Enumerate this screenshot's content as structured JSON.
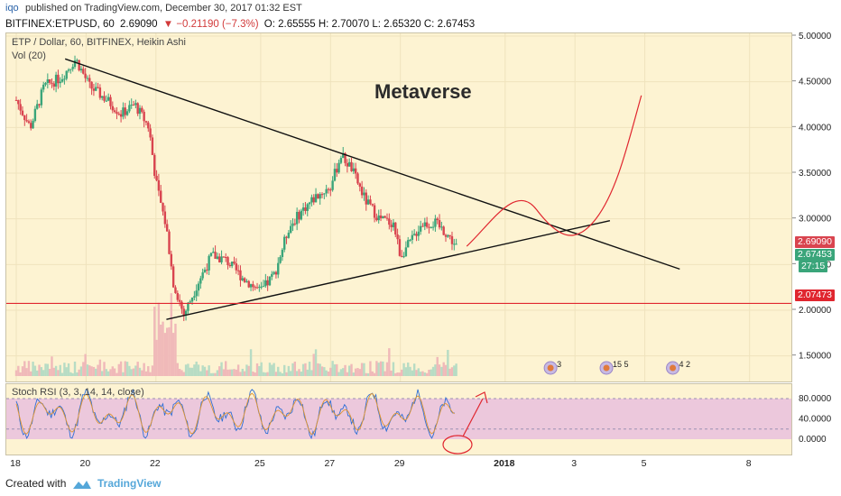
{
  "header": {
    "user": "iqo",
    "published": "published on TradingView.com, December 30, 2017 01:32 EST",
    "symbol": "BITFINEX:ETPUSD, 60",
    "last": "2.69090",
    "change": "▼ −0.21190 (−7.3%)",
    "ohlc": "O: 2.65555  H: 2.70070  L: 2.65320  C: 2.67453"
  },
  "legend": {
    "title": "ETP / Dollar, 60, BITFINEX, Heikin Ashi",
    "vol": "Vol (20)",
    "rsi": "Stoch RSI (3, 3, 14, 14, close)"
  },
  "annotation": "Metaverse",
  "price_tags": {
    "last": "2.69090",
    "close": "2.67453",
    "countdown": "27:15",
    "level": "2.07473"
  },
  "events": [
    {
      "count": "3"
    },
    {
      "count": "15 5"
    },
    {
      "count": "4 2"
    }
  ],
  "footer": {
    "created": "Created with",
    "brand": "TradingView"
  },
  "colors": {
    "up": "#3aa57a",
    "down": "#d9444f",
    "line_black": "#111111",
    "line_red": "#e0262f",
    "background": "#fdf3d2",
    "rsi_band": "#ecc8dc"
  },
  "chart_data": [
    {
      "type": "candlestick",
      "title": "ETP / Dollar, 60, BITFINEX, Heikin Ashi",
      "x_tick_labels": [
        "18",
        "20",
        "22",
        "25",
        "27",
        "29",
        "2018",
        "3",
        "5",
        "8"
      ],
      "y_tick_labels": [
        "5.00000",
        "4.50000",
        "4.00000",
        "3.50000",
        "3.00000",
        "2.50000",
        "2.00000",
        "1.50000"
      ],
      "ylim": [
        1.2,
        5.0
      ],
      "x": [
        "Dec 18",
        "Dec 19",
        "Dec 20",
        "Dec 21",
        "Dec 22",
        "Dec 23",
        "Dec 24",
        "Dec 25",
        "Dec 26",
        "Dec 27",
        "Dec 28",
        "Dec 29",
        "Dec 30"
      ],
      "close": [
        4.35,
        4.7,
        4.2,
        3.95,
        2.0,
        2.3,
        2.45,
        2.8,
        3.35,
        3.6,
        2.95,
        2.85,
        2.67
      ],
      "trendlines": [
        {
          "from": [
            "Dec 19",
            4.75
          ],
          "to": [
            "Jan 6",
            2.45
          ]
        },
        {
          "from": [
            "Dec 22",
            1.9
          ],
          "to": [
            "Jan 4",
            2.98
          ]
        }
      ],
      "horizontal_level": 2.07473,
      "projection": "red curve rising from 2.7 to about 4.35"
    },
    {
      "type": "line",
      "title": "Stoch RSI (3, 3, 14, 14, close)",
      "y_tick_labels": [
        "80.0000",
        "40.0000",
        "0.0000"
      ],
      "ylim": [
        0,
        100
      ],
      "band": [
        20,
        80
      ]
    }
  ]
}
